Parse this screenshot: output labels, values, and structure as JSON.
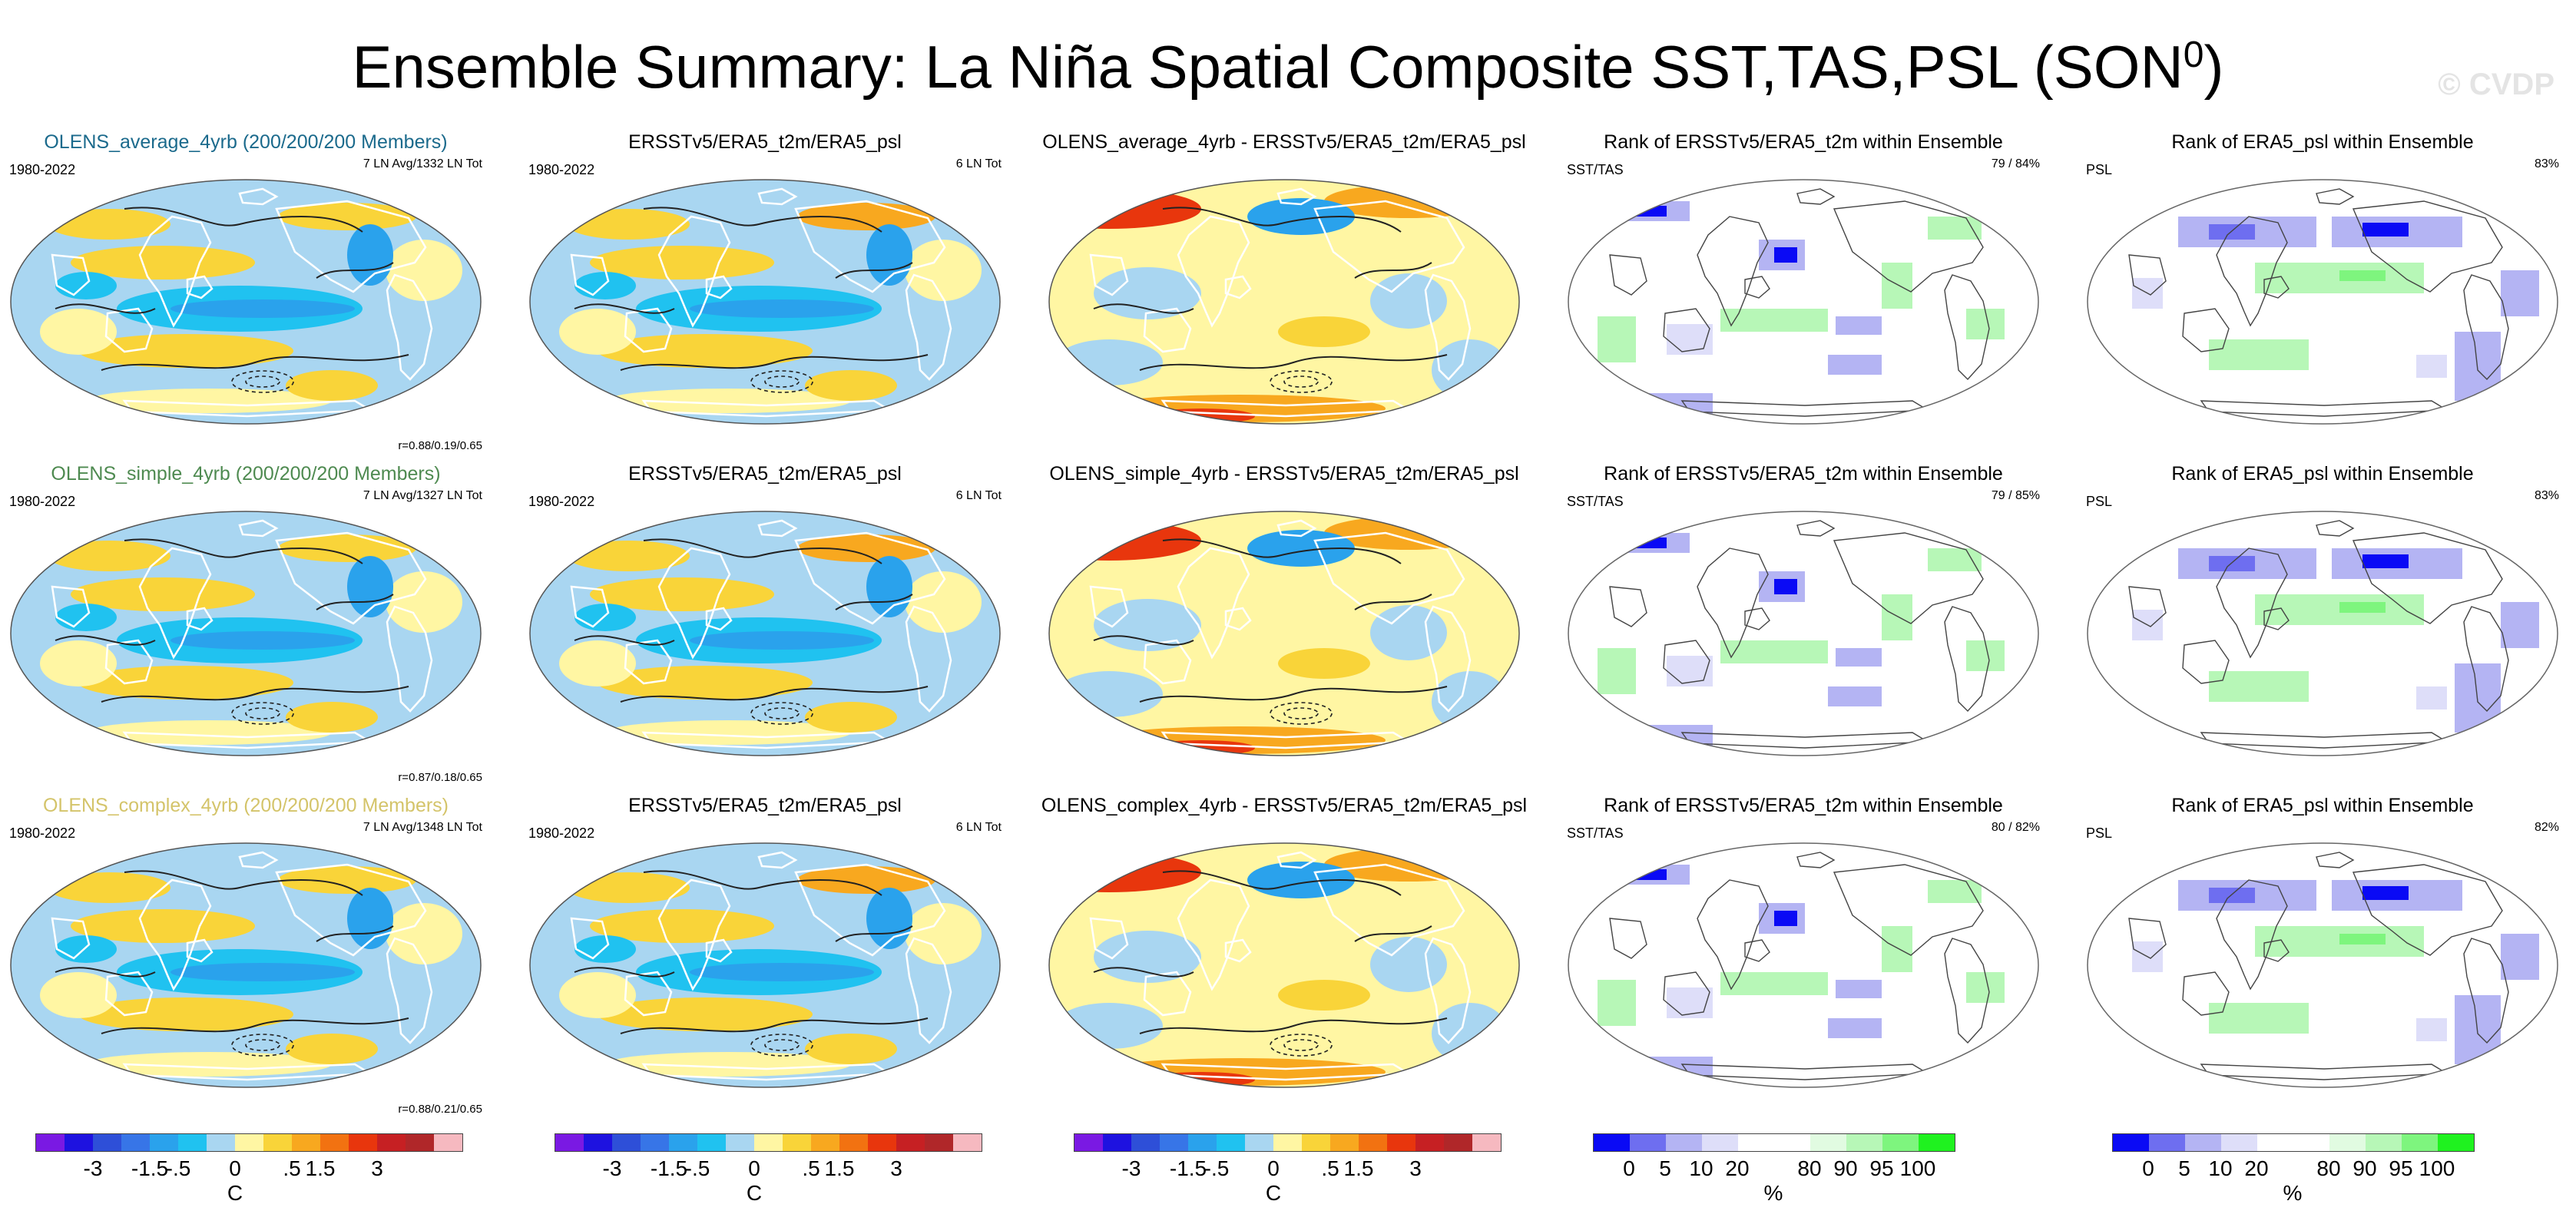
{
  "title": "Ensemble Summary: La Niña Spatial Composite SST,TAS,PSL (SON",
  "title_sup": "0",
  "title_close": ")",
  "watermark": "© CVDP",
  "colors": {
    "temp_scale": [
      "#7a19e3",
      "#1e12e0",
      "#2e4fd8",
      "#3775e7",
      "#2aa2ec",
      "#20c2f0",
      "#a9d6f1",
      "#fff6a3",
      "#f9d439",
      "#f8a81f",
      "#f27211",
      "#e8360d",
      "#c62023",
      "#b02729",
      "#f6b9c0"
    ],
    "rank_scale": [
      "#0a0af5",
      "#6e6ef0",
      "#b4b4f3",
      "#dedef9",
      "#ffffff",
      "#e1fbe1",
      "#b7f7b7",
      "#7ef57e",
      "#1ff21f"
    ],
    "title_average": "#1b6a8c",
    "title_simple": "#4e8a50",
    "title_complex": "#d4c46a"
  },
  "rows": [
    {
      "ens": {
        "title": "OLENS_average_4yrb (200/200/200 Members)",
        "period": "1980-2022",
        "count": "7 LN Avg/1332 LN Tot",
        "corr": "r=0.88/0.19/0.65"
      },
      "obs": {
        "title": "ERSSTv5/ERA5_t2m/ERA5_psl",
        "period": "1980-2022",
        "count": "6 LN Tot"
      },
      "diff": {
        "title": "OLENS_average_4yrb - ERSSTv5/ERA5_t2m/ERA5_psl"
      },
      "rank_sst": {
        "title": "Rank of ERSSTv5/ERA5_t2m within Ensemble",
        "label": "SST/TAS",
        "pct": "79 /  84%"
      },
      "rank_psl": {
        "title": "Rank of ERA5_psl within Ensemble",
        "label": "PSL",
        "pct": "83%"
      }
    },
    {
      "ens": {
        "title": "OLENS_simple_4yrb (200/200/200 Members)",
        "period": "1980-2022",
        "count": "7 LN Avg/1327 LN Tot",
        "corr": "r=0.87/0.18/0.65"
      },
      "obs": {
        "title": "ERSSTv5/ERA5_t2m/ERA5_psl",
        "period": "1980-2022",
        "count": "6 LN Tot"
      },
      "diff": {
        "title": "OLENS_simple_4yrb - ERSSTv5/ERA5_t2m/ERA5_psl"
      },
      "rank_sst": {
        "title": "Rank of ERSSTv5/ERA5_t2m within Ensemble",
        "label": "SST/TAS",
        "pct": "79 /  85%"
      },
      "rank_psl": {
        "title": "Rank of ERA5_psl within Ensemble",
        "label": "PSL",
        "pct": "83%"
      }
    },
    {
      "ens": {
        "title": "OLENS_complex_4yrb (200/200/200 Members)",
        "period": "1980-2022",
        "count": "7 LN Avg/1348 LN Tot",
        "corr": "r=0.88/0.21/0.65"
      },
      "obs": {
        "title": "ERSSTv5/ERA5_t2m/ERA5_psl",
        "period": "1980-2022",
        "count": "6 LN Tot"
      },
      "diff": {
        "title": "OLENS_complex_4yrb - ERSSTv5/ERA5_t2m/ERA5_psl"
      },
      "rank_sst": {
        "title": "Rank of ERSSTv5/ERA5_t2m within Ensemble",
        "label": "SST/TAS",
        "pct": "80 /  82%"
      },
      "rank_psl": {
        "title": "Rank of ERA5_psl within Ensemble",
        "label": "PSL",
        "pct": "82%"
      }
    }
  ],
  "colorbar_temp": {
    "ticks": [
      "-3",
      "-1.5",
      "-.5",
      "0",
      ".5",
      "1.5",
      "3"
    ],
    "unit": "C"
  },
  "colorbar_rank": {
    "ticks": [
      "0",
      "5",
      "10",
      "20",
      "80",
      "90",
      "95",
      "100"
    ],
    "unit": "%"
  }
}
